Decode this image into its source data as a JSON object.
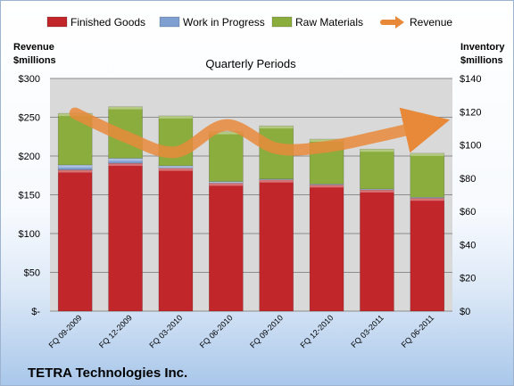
{
  "chart_data": {
    "type": "bar",
    "stacked": true,
    "subtitle": "Quarterly Periods",
    "footer": "TETRA Technologies Inc.",
    "left_axis_title": [
      "Revenue",
      "$millions"
    ],
    "right_axis_title": [
      "Inventory",
      "$millions"
    ],
    "left_ticks": [
      "$-",
      "$50",
      "$100",
      "$150",
      "$200",
      "$250",
      "$300"
    ],
    "right_ticks": [
      "$0",
      "$20",
      "$40",
      "$60",
      "$80",
      "$100",
      "$120",
      "$140"
    ],
    "left_ylim": [
      0,
      300
    ],
    "right_ylim": [
      0,
      140
    ],
    "categories": [
      "FQ 09-2009",
      "FQ 12-2009",
      "FQ 03-2010",
      "FQ 06-2010",
      "FQ 09-2010",
      "FQ 12-2010",
      "FQ 03-2011",
      "FQ 06-2011"
    ],
    "series": [
      {
        "name": "Finished Goods",
        "axis": "right",
        "color": "#c0262a",
        "values": [
          85,
          89,
          86,
          77,
          79,
          76,
          73,
          68
        ]
      },
      {
        "name": "Work in Progress",
        "axis": "right",
        "color": "#7f9fd0",
        "values": [
          3,
          3,
          1.5,
          1,
          0.5,
          0.5,
          0.5,
          0.5
        ]
      },
      {
        "name": "Raw Materials",
        "axis": "right",
        "color": "#8aad3e",
        "values": [
          31,
          31,
          30,
          30,
          32,
          27,
          24,
          26.5
        ]
      },
      {
        "name": "Revenue",
        "axis": "left",
        "type": "line",
        "color": "#e8893a",
        "values": [
          255,
          225,
          205,
          240,
          210,
          212,
          225,
          240
        ]
      }
    ],
    "grid": true,
    "legend": "top"
  }
}
